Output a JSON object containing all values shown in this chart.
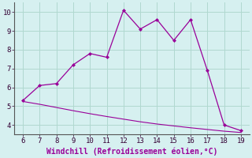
{
  "x_upper": [
    6,
    7,
    8,
    9,
    10,
    11,
    12,
    13,
    14,
    15,
    16,
    17,
    18,
    19
  ],
  "y_upper": [
    5.3,
    6.1,
    6.2,
    7.2,
    7.8,
    7.6,
    10.1,
    9.1,
    9.6,
    8.5,
    9.6,
    6.9,
    4.0,
    3.7
  ],
  "x_lower": [
    6,
    7,
    8,
    9,
    10,
    11,
    12,
    13,
    14,
    15,
    16,
    17,
    18,
    19
  ],
  "y_lower": [
    5.25,
    5.1,
    4.93,
    4.76,
    4.6,
    4.45,
    4.31,
    4.17,
    4.05,
    3.95,
    3.85,
    3.76,
    3.67,
    3.6
  ],
  "line_color": "#990099",
  "bg_color": "#d6f0f0",
  "grid_color": "#b0d8d0",
  "xlabel": "Windchill (Refroidissement éolien,°C)",
  "xlim": [
    5.5,
    19.5
  ],
  "ylim": [
    3.5,
    10.5
  ],
  "xticks": [
    6,
    7,
    8,
    9,
    10,
    11,
    12,
    13,
    14,
    15,
    16,
    17,
    18,
    19
  ],
  "yticks": [
    4,
    5,
    6,
    7,
    8,
    9,
    10
  ],
  "tick_fontsize": 6.5,
  "xlabel_fontsize": 7
}
